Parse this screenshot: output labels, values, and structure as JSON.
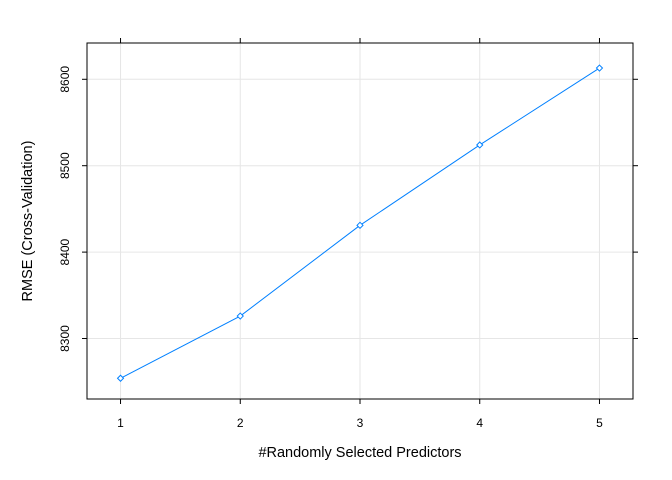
{
  "chart_data": {
    "type": "line",
    "xlabel": "#Randomly Selected Predictors",
    "ylabel": "RMSE (Cross-Validation)",
    "x": [
      1,
      2,
      3,
      4,
      5
    ],
    "series": [
      {
        "values": [
          8254,
          8326,
          8431,
          8524,
          8613
        ],
        "color": "#0080ff"
      }
    ],
    "xticks": [
      1,
      2,
      3,
      4,
      5
    ],
    "yticks": [
      8300,
      8400,
      8500,
      8600
    ],
    "xlim": [
      0.72,
      5.28
    ],
    "ylim": [
      8230,
      8642
    ],
    "grid": true,
    "grid_color": "#e6e6e6",
    "marker": "diamond-open"
  }
}
